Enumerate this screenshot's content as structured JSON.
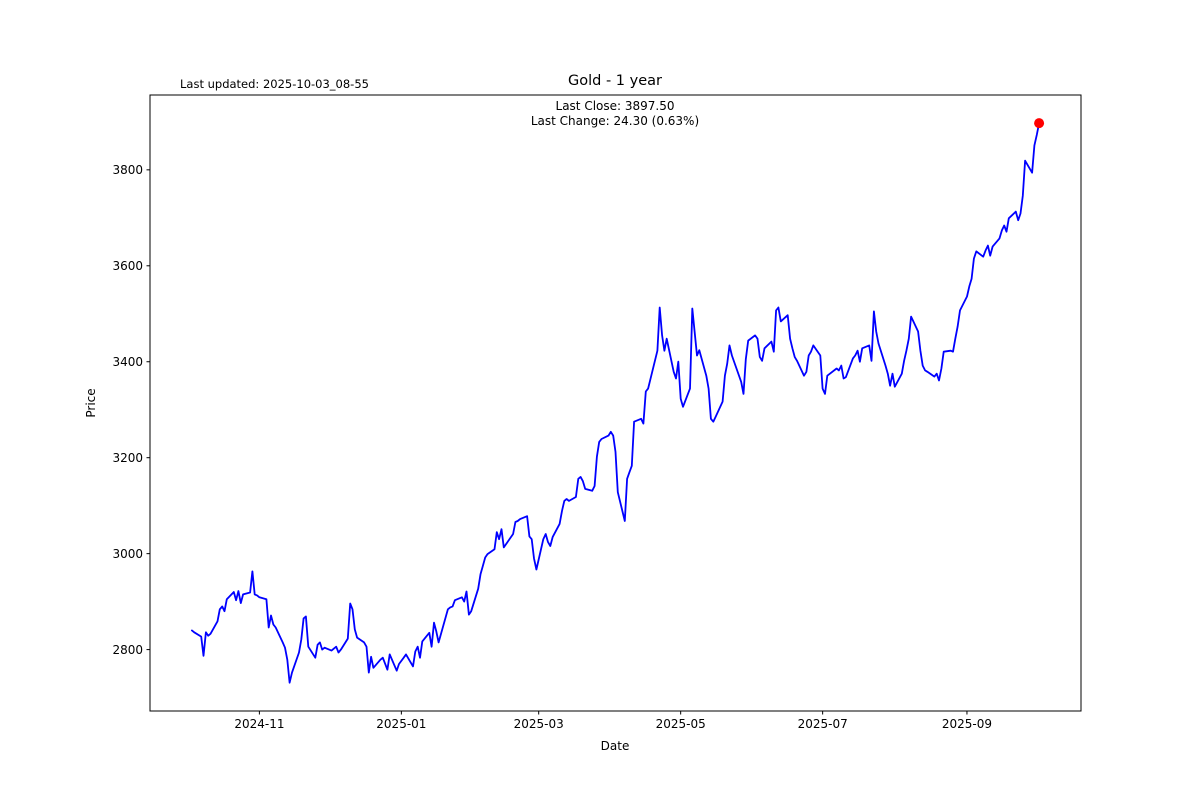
{
  "header": {
    "last_updated": "Last updated: 2025-10-03_08-55",
    "title": "Gold - 1 year"
  },
  "annotation": {
    "line1": "Last Close: 3897.50",
    "line2": "Last Change: 24.30 (0.63%)"
  },
  "axes": {
    "xlabel": "Date",
    "ylabel": "Price",
    "xlim": [
      "2024-09-15",
      "2025-10-20"
    ],
    "ylim": [
      2672,
      3956
    ],
    "yticks": [
      2800,
      3000,
      3200,
      3400,
      3600,
      3800
    ],
    "xticks": [
      {
        "date": "2024-11-01",
        "label": "2024-11"
      },
      {
        "date": "2025-01-01",
        "label": "2025-01"
      },
      {
        "date": "2025-03-01",
        "label": "2025-03"
      },
      {
        "date": "2025-05-01",
        "label": "2025-05"
      },
      {
        "date": "2025-07-01",
        "label": "2025-07"
      },
      {
        "date": "2025-09-01",
        "label": "2025-09"
      }
    ],
    "grid": false,
    "legend": false
  },
  "chart_data": {
    "type": "line",
    "title": "Gold - 1 year",
    "xlabel": "Date",
    "ylabel": "Price",
    "line_color": "#0000ff",
    "marker_color": "#ff0000",
    "last_close": 3897.5,
    "last_change": 24.3,
    "last_change_pct": 0.63,
    "ylim": [
      2672,
      3956
    ],
    "series": [
      {
        "name": "Gold",
        "points": [
          [
            "2024-10-03",
            2840
          ],
          [
            "2024-10-04",
            2836
          ],
          [
            "2024-10-07",
            2827
          ],
          [
            "2024-10-08",
            2787
          ],
          [
            "2024-10-09",
            2836
          ],
          [
            "2024-10-10",
            2829
          ],
          [
            "2024-10-11",
            2833
          ],
          [
            "2024-10-14",
            2859
          ],
          [
            "2024-10-15",
            2884
          ],
          [
            "2024-10-16",
            2890
          ],
          [
            "2024-10-17",
            2880
          ],
          [
            "2024-10-18",
            2905
          ],
          [
            "2024-10-21",
            2920
          ],
          [
            "2024-10-22",
            2903
          ],
          [
            "2024-10-23",
            2922
          ],
          [
            "2024-10-24",
            2897
          ],
          [
            "2024-10-25",
            2915
          ],
          [
            "2024-10-28",
            2919
          ],
          [
            "2024-10-29",
            2963
          ],
          [
            "2024-10-30",
            2915
          ],
          [
            "2024-10-31",
            2913
          ],
          [
            "2024-11-01",
            2909
          ],
          [
            "2024-11-04",
            2905
          ],
          [
            "2024-11-05",
            2846
          ],
          [
            "2024-11-06",
            2871
          ],
          [
            "2024-11-07",
            2852
          ],
          [
            "2024-11-08",
            2846
          ],
          [
            "2024-11-11",
            2815
          ],
          [
            "2024-11-12",
            2804
          ],
          [
            "2024-11-13",
            2779
          ],
          [
            "2024-11-14",
            2731
          ],
          [
            "2024-11-15",
            2752
          ],
          [
            "2024-11-18",
            2794
          ],
          [
            "2024-11-19",
            2821
          ],
          [
            "2024-11-20",
            2865
          ],
          [
            "2024-11-21",
            2869
          ],
          [
            "2024-11-22",
            2806
          ],
          [
            "2024-11-25",
            2783
          ],
          [
            "2024-11-26",
            2810
          ],
          [
            "2024-11-27",
            2815
          ],
          [
            "2024-11-28",
            2800
          ],
          [
            "2024-11-29",
            2804
          ],
          [
            "2024-12-02",
            2798
          ],
          [
            "2024-12-03",
            2802
          ],
          [
            "2024-12-04",
            2806
          ],
          [
            "2024-12-05",
            2794
          ],
          [
            "2024-12-06",
            2800
          ],
          [
            "2024-12-09",
            2823
          ],
          [
            "2024-12-10",
            2896
          ],
          [
            "2024-12-11",
            2884
          ],
          [
            "2024-12-12",
            2842
          ],
          [
            "2024-12-13",
            2825
          ],
          [
            "2024-12-16",
            2815
          ],
          [
            "2024-12-17",
            2806
          ],
          [
            "2024-12-18",
            2752
          ],
          [
            "2024-12-19",
            2785
          ],
          [
            "2024-12-20",
            2762
          ],
          [
            "2024-12-23",
            2779
          ],
          [
            "2024-12-24",
            2783
          ],
          [
            "2024-12-26",
            2758
          ],
          [
            "2024-12-27",
            2790
          ],
          [
            "2024-12-30",
            2756
          ],
          [
            "2024-12-31",
            2770
          ],
          [
            "2025-01-02",
            2783
          ],
          [
            "2025-01-03",
            2790
          ],
          [
            "2025-01-06",
            2765
          ],
          [
            "2025-01-07",
            2796
          ],
          [
            "2025-01-08",
            2806
          ],
          [
            "2025-01-09",
            2783
          ],
          [
            "2025-01-10",
            2817
          ],
          [
            "2025-01-13",
            2835
          ],
          [
            "2025-01-14",
            2806
          ],
          [
            "2025-01-15",
            2856
          ],
          [
            "2025-01-16",
            2838
          ],
          [
            "2025-01-17",
            2815
          ],
          [
            "2025-01-21",
            2884
          ],
          [
            "2025-01-22",
            2888
          ],
          [
            "2025-01-23",
            2890
          ],
          [
            "2025-01-24",
            2903
          ],
          [
            "2025-01-27",
            2909
          ],
          [
            "2025-01-28",
            2900
          ],
          [
            "2025-01-29",
            2921
          ],
          [
            "2025-01-30",
            2873
          ],
          [
            "2025-01-31",
            2880
          ],
          [
            "2025-02-03",
            2927
          ],
          [
            "2025-02-04",
            2957
          ],
          [
            "2025-02-05",
            2974
          ],
          [
            "2025-02-06",
            2992
          ],
          [
            "2025-02-07",
            2999
          ],
          [
            "2025-02-10",
            3009
          ],
          [
            "2025-02-11",
            3045
          ],
          [
            "2025-02-12",
            3030
          ],
          [
            "2025-02-13",
            3051
          ],
          [
            "2025-02-14",
            3013
          ],
          [
            "2025-02-18",
            3041
          ],
          [
            "2025-02-19",
            3066
          ],
          [
            "2025-02-20",
            3068
          ],
          [
            "2025-02-21",
            3072
          ],
          [
            "2025-02-24",
            3078
          ],
          [
            "2025-02-25",
            3036
          ],
          [
            "2025-02-26",
            3030
          ],
          [
            "2025-02-27",
            2990
          ],
          [
            "2025-02-28",
            2967
          ],
          [
            "2025-03-03",
            3030
          ],
          [
            "2025-03-04",
            3041
          ],
          [
            "2025-03-05",
            3024
          ],
          [
            "2025-03-06",
            3016
          ],
          [
            "2025-03-07",
            3035
          ],
          [
            "2025-03-10",
            3062
          ],
          [
            "2025-03-11",
            3089
          ],
          [
            "2025-03-12",
            3110
          ],
          [
            "2025-03-13",
            3114
          ],
          [
            "2025-03-14",
            3110
          ],
          [
            "2025-03-17",
            3118
          ],
          [
            "2025-03-18",
            3156
          ],
          [
            "2025-03-19",
            3160
          ],
          [
            "2025-03-20",
            3151
          ],
          [
            "2025-03-21",
            3135
          ],
          [
            "2025-03-24",
            3131
          ],
          [
            "2025-03-25",
            3141
          ],
          [
            "2025-03-26",
            3202
          ],
          [
            "2025-03-27",
            3233
          ],
          [
            "2025-03-28",
            3239
          ],
          [
            "2025-03-31",
            3246
          ],
          [
            "2025-04-01",
            3254
          ],
          [
            "2025-04-02",
            3246
          ],
          [
            "2025-04-03",
            3212
          ],
          [
            "2025-04-04",
            3128
          ],
          [
            "2025-04-07",
            3068
          ],
          [
            "2025-04-08",
            3156
          ],
          [
            "2025-04-09",
            3170
          ],
          [
            "2025-04-10",
            3183
          ],
          [
            "2025-04-11",
            3275
          ],
          [
            "2025-04-14",
            3281
          ],
          [
            "2025-04-15",
            3271
          ],
          [
            "2025-04-16",
            3338
          ],
          [
            "2025-04-17",
            3344
          ],
          [
            "2025-04-21",
            3423
          ],
          [
            "2025-04-22",
            3513
          ],
          [
            "2025-04-23",
            3455
          ],
          [
            "2025-04-24",
            3423
          ],
          [
            "2025-04-25",
            3448
          ],
          [
            "2025-04-28",
            3379
          ],
          [
            "2025-04-29",
            3365
          ],
          [
            "2025-04-30",
            3400
          ],
          [
            "2025-05-01",
            3323
          ],
          [
            "2025-05-02",
            3306
          ],
          [
            "2025-05-05",
            3344
          ],
          [
            "2025-05-06",
            3511
          ],
          [
            "2025-05-07",
            3463
          ],
          [
            "2025-05-08",
            3413
          ],
          [
            "2025-05-09",
            3424
          ],
          [
            "2025-05-12",
            3371
          ],
          [
            "2025-05-13",
            3344
          ],
          [
            "2025-05-14",
            3281
          ],
          [
            "2025-05-15",
            3275
          ],
          [
            "2025-05-16",
            3285
          ],
          [
            "2025-05-19",
            3317
          ],
          [
            "2025-05-20",
            3371
          ],
          [
            "2025-05-21",
            3396
          ],
          [
            "2025-05-22",
            3434
          ],
          [
            "2025-05-23",
            3413
          ],
          [
            "2025-05-27",
            3358
          ],
          [
            "2025-05-28",
            3333
          ],
          [
            "2025-05-29",
            3405
          ],
          [
            "2025-05-30",
            3444
          ],
          [
            "2025-06-02",
            3455
          ],
          [
            "2025-06-03",
            3448
          ],
          [
            "2025-06-04",
            3410
          ],
          [
            "2025-06-05",
            3402
          ],
          [
            "2025-06-06",
            3428
          ],
          [
            "2025-06-09",
            3442
          ],
          [
            "2025-06-10",
            3421
          ],
          [
            "2025-06-11",
            3507
          ],
          [
            "2025-06-12",
            3513
          ],
          [
            "2025-06-13",
            3484
          ],
          [
            "2025-06-16",
            3497
          ],
          [
            "2025-06-17",
            3448
          ],
          [
            "2025-06-18",
            3428
          ],
          [
            "2025-06-19",
            3410
          ],
          [
            "2025-06-20",
            3402
          ],
          [
            "2025-06-23",
            3371
          ],
          [
            "2025-06-24",
            3379
          ],
          [
            "2025-06-25",
            3413
          ],
          [
            "2025-06-26",
            3421
          ],
          [
            "2025-06-27",
            3434
          ],
          [
            "2025-06-30",
            3413
          ],
          [
            "2025-07-01",
            3344
          ],
          [
            "2025-07-02",
            3333
          ],
          [
            "2025-07-03",
            3371
          ],
          [
            "2025-07-07",
            3386
          ],
          [
            "2025-07-08",
            3382
          ],
          [
            "2025-07-09",
            3392
          ],
          [
            "2025-07-10",
            3365
          ],
          [
            "2025-07-11",
            3368
          ],
          [
            "2025-07-14",
            3407
          ],
          [
            "2025-07-15",
            3413
          ],
          [
            "2025-07-16",
            3423
          ],
          [
            "2025-07-17",
            3400
          ],
          [
            "2025-07-18",
            3428
          ],
          [
            "2025-07-21",
            3434
          ],
          [
            "2025-07-22",
            3402
          ],
          [
            "2025-07-23",
            3505
          ],
          [
            "2025-07-24",
            3463
          ],
          [
            "2025-07-25",
            3438
          ],
          [
            "2025-07-28",
            3392
          ],
          [
            "2025-07-29",
            3375
          ],
          [
            "2025-07-30",
            3350
          ],
          [
            "2025-07-31",
            3375
          ],
          [
            "2025-08-01",
            3348
          ],
          [
            "2025-08-04",
            3375
          ],
          [
            "2025-08-05",
            3402
          ],
          [
            "2025-08-06",
            3423
          ],
          [
            "2025-08-07",
            3448
          ],
          [
            "2025-08-08",
            3494
          ],
          [
            "2025-08-11",
            3463
          ],
          [
            "2025-08-12",
            3423
          ],
          [
            "2025-08-13",
            3392
          ],
          [
            "2025-08-14",
            3382
          ],
          [
            "2025-08-15",
            3379
          ],
          [
            "2025-08-18",
            3369
          ],
          [
            "2025-08-19",
            3375
          ],
          [
            "2025-08-20",
            3361
          ],
          [
            "2025-08-21",
            3386
          ],
          [
            "2025-08-22",
            3421
          ],
          [
            "2025-08-25",
            3423
          ],
          [
            "2025-08-26",
            3421
          ],
          [
            "2025-08-27",
            3448
          ],
          [
            "2025-08-28",
            3473
          ],
          [
            "2025-08-29",
            3507
          ],
          [
            "2025-09-01",
            3536
          ],
          [
            "2025-09-02",
            3557
          ],
          [
            "2025-09-03",
            3573
          ],
          [
            "2025-09-04",
            3615
          ],
          [
            "2025-09-05",
            3630
          ],
          [
            "2025-09-08",
            3619
          ],
          [
            "2025-09-09",
            3632
          ],
          [
            "2025-09-10",
            3642
          ],
          [
            "2025-09-11",
            3621
          ],
          [
            "2025-09-12",
            3640
          ],
          [
            "2025-09-15",
            3657
          ],
          [
            "2025-09-16",
            3674
          ],
          [
            "2025-09-17",
            3684
          ],
          [
            "2025-09-18",
            3671
          ],
          [
            "2025-09-19",
            3699
          ],
          [
            "2025-09-22",
            3713
          ],
          [
            "2025-09-23",
            3695
          ],
          [
            "2025-09-24",
            3709
          ],
          [
            "2025-09-25",
            3746
          ],
          [
            "2025-09-26",
            3819
          ],
          [
            "2025-09-29",
            3794
          ],
          [
            "2025-09-30",
            3851
          ],
          [
            "2025-10-01",
            3873
          ],
          [
            "2025-10-02",
            3897.5
          ]
        ]
      }
    ]
  }
}
